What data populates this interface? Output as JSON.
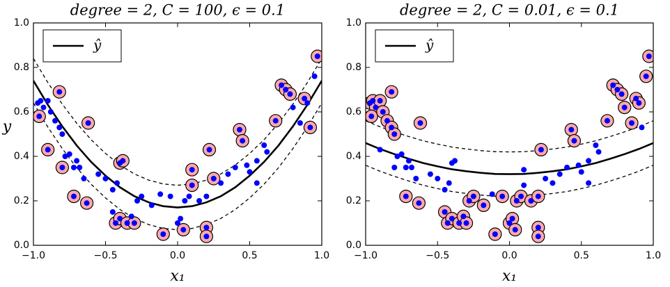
{
  "chart_data": [
    {
      "type": "scatter",
      "title": "degree = 2, C = 100, ϵ = 0.1",
      "x_label": "x₁",
      "y_label": "y",
      "xlim": [
        -1,
        1
      ],
      "ylim": [
        0,
        1
      ],
      "xticks": [
        {
          "value": -1,
          "label": "−1.0"
        },
        {
          "value": -0.5,
          "label": "−0.5"
        },
        {
          "value": 0,
          "label": "0.0"
        },
        0.5,
        {
          "value": 1,
          "label": "1.0"
        }
      ],
      "yticks": [
        {
          "value": 0,
          "label": "0.0"
        },
        0.2,
        0.4,
        0.6,
        0.8,
        {
          "value": 1,
          "label": "1.0"
        }
      ],
      "legend": "upper left",
      "series": [
        {
          "name": "ŷ",
          "kind": "line",
          "color": "#000000",
          "x": [
            -1,
            -0.9,
            -0.8,
            -0.7,
            -0.6,
            -0.5,
            -0.4,
            -0.3,
            -0.2,
            -0.1,
            0,
            0.1,
            0.2,
            0.3,
            0.4,
            0.5,
            0.6,
            0.7,
            0.8,
            0.9,
            1
          ],
          "values": [
            0.74,
            0.632,
            0.535,
            0.449,
            0.375,
            0.313,
            0.261,
            0.221,
            0.193,
            0.176,
            0.17,
            0.176,
            0.193,
            0.221,
            0.261,
            0.313,
            0.375,
            0.449,
            0.535,
            0.632,
            0.74
          ]
        },
        {
          "kind": "line",
          "dash": true,
          "color": "#000000",
          "x": [
            -1,
            -0.9,
            -0.8,
            -0.7,
            -0.6,
            -0.5,
            -0.4,
            -0.3,
            -0.2,
            -0.1,
            0,
            0.1,
            0.2,
            0.3,
            0.4,
            0.5,
            0.6,
            0.7,
            0.8,
            0.9,
            1
          ],
          "values": [
            0.84,
            0.732,
            0.635,
            0.549,
            0.475,
            0.413,
            0.361,
            0.321,
            0.293,
            0.276,
            0.27,
            0.276,
            0.293,
            0.321,
            0.361,
            0.413,
            0.475,
            0.549,
            0.635,
            0.732,
            0.84
          ]
        },
        {
          "kind": "line",
          "dash": true,
          "color": "#000000",
          "x": [
            -1,
            -0.9,
            -0.8,
            -0.7,
            -0.6,
            -0.5,
            -0.4,
            -0.3,
            -0.2,
            -0.1,
            0,
            0.1,
            0.2,
            0.3,
            0.4,
            0.5,
            0.6,
            0.7,
            0.8,
            0.9,
            1
          ],
          "values": [
            0.64,
            0.532,
            0.435,
            0.349,
            0.275,
            0.213,
            0.161,
            0.121,
            0.093,
            0.076,
            0.07,
            0.076,
            0.093,
            0.121,
            0.161,
            0.213,
            0.275,
            0.349,
            0.435,
            0.532,
            0.64
          ]
        },
        {
          "kind": "scatter",
          "color": "#ffaaaa",
          "edgecolor": "#000000",
          "x": [
            -0.96,
            -0.9,
            -0.82,
            -0.8,
            -0.72,
            -0.62,
            -0.63,
            -0.4,
            -0.38,
            -0.43,
            -0.4,
            -0.35,
            -0.3,
            -0.1,
            0.04,
            0.1,
            0.1,
            0.2,
            0.2,
            0.22,
            0.25,
            0.43,
            0.45,
            0.68,
            0.72,
            0.75,
            0.78,
            0.88,
            0.92,
            0.97
          ],
          "values": [
            0.58,
            0.43,
            0.69,
            0.35,
            0.22,
            0.55,
            0.19,
            0.37,
            0.38,
            0.1,
            0.12,
            0.1,
            0.1,
            0.05,
            0.07,
            0.34,
            0.27,
            0.08,
            0.04,
            0.43,
            0.3,
            0.52,
            0.47,
            0.56,
            0.72,
            0.7,
            0.68,
            0.66,
            0.53,
            0.85
          ]
        },
        {
          "kind": "scatter",
          "color": "#0000ff",
          "x": [
            -0.97,
            -0.95,
            -0.93,
            -0.96,
            -0.9,
            -0.88,
            -0.85,
            -0.82,
            -0.9,
            -0.8,
            -0.82,
            -0.78,
            -0.75,
            -0.8,
            -0.72,
            -0.7,
            -0.68,
            -0.65,
            -0.72,
            -0.62,
            -0.63,
            -0.55,
            -0.5,
            -0.45,
            -0.42,
            -0.4,
            -0.38,
            -0.45,
            -0.43,
            -0.4,
            -0.35,
            -0.32,
            -0.3,
            -0.28,
            -0.25,
            -0.18,
            -0.12,
            -0.1,
            -0.05,
            0,
            0.02,
            0.04,
            0.05,
            0.08,
            0.1,
            0.1,
            0.15,
            0.2,
            0.2,
            0.2,
            0.22,
            0.25,
            0.3,
            0.35,
            0.4,
            0.43,
            0.45,
            0.48,
            0.5,
            0.55,
            0.55,
            0.6,
            0.62,
            0.68,
            0.72,
            0.75,
            0.78,
            0.8,
            0.85,
            0.88,
            0.9,
            0.92,
            0.95,
            0.97
          ],
          "values": [
            0.64,
            0.65,
            0.62,
            0.58,
            0.65,
            0.6,
            0.56,
            0.53,
            0.43,
            0.5,
            0.69,
            0.4,
            0.41,
            0.35,
            0.35,
            0.38,
            0.35,
            0.3,
            0.22,
            0.55,
            0.19,
            0.32,
            0.3,
            0.25,
            0.28,
            0.37,
            0.38,
            0.15,
            0.1,
            0.12,
            0.1,
            0.13,
            0.1,
            0.2,
            0.22,
            0.18,
            0.23,
            0.05,
            0.22,
            0.1,
            0.12,
            0.07,
            0.2,
            0.22,
            0.34,
            0.27,
            0.2,
            0.22,
            0.08,
            0.04,
            0.43,
            0.3,
            0.28,
            0.32,
            0.35,
            0.52,
            0.47,
            0.36,
            0.33,
            0.28,
            0.38,
            0.45,
            0.42,
            0.56,
            0.72,
            0.7,
            0.68,
            0.62,
            0.55,
            0.66,
            0.64,
            0.53,
            0.76,
            0.85
          ]
        }
      ]
    },
    {
      "type": "scatter",
      "title": "degree = 2, C = 0.01, ϵ = 0.1",
      "x_label": "x₁",
      "xlim": [
        -1,
        1
      ],
      "ylim": [
        0,
        1
      ],
      "xticks": [
        {
          "value": -1,
          "label": "−1.0"
        },
        {
          "value": -0.5,
          "label": "−0.5"
        },
        {
          "value": 0,
          "label": "0.0"
        },
        0.5,
        {
          "value": 1,
          "label": "1.0"
        }
      ],
      "yticks": [
        {
          "value": 0,
          "label": "0.0"
        },
        0.2,
        0.4,
        0.6,
        0.8,
        {
          "value": 1,
          "label": "1.0"
        }
      ],
      "legend": "upper left",
      "series": [
        {
          "name": "ŷ",
          "kind": "line",
          "color": "#000000",
          "x": [
            -1,
            -0.9,
            -0.8,
            -0.7,
            -0.6,
            -0.5,
            -0.4,
            -0.3,
            -0.2,
            -0.1,
            0,
            0.1,
            0.2,
            0.3,
            0.4,
            0.5,
            0.6,
            0.7,
            0.8,
            0.9,
            1
          ],
          "values": [
            0.46,
            0.433,
            0.41,
            0.389,
            0.37,
            0.355,
            0.342,
            0.333,
            0.326,
            0.321,
            0.32,
            0.321,
            0.326,
            0.333,
            0.342,
            0.355,
            0.37,
            0.389,
            0.41,
            0.433,
            0.46
          ]
        },
        {
          "kind": "line",
          "dash": true,
          "color": "#000000",
          "x": [
            -1,
            -0.9,
            -0.8,
            -0.7,
            -0.6,
            -0.5,
            -0.4,
            -0.3,
            -0.2,
            -0.1,
            0,
            0.1,
            0.2,
            0.3,
            0.4,
            0.5,
            0.6,
            0.7,
            0.8,
            0.9,
            1
          ],
          "values": [
            0.56,
            0.533,
            0.51,
            0.489,
            0.47,
            0.455,
            0.442,
            0.433,
            0.426,
            0.421,
            0.42,
            0.421,
            0.426,
            0.433,
            0.442,
            0.455,
            0.47,
            0.489,
            0.51,
            0.533,
            0.56
          ]
        },
        {
          "kind": "line",
          "dash": true,
          "color": "#000000",
          "x": [
            -1,
            -0.9,
            -0.8,
            -0.7,
            -0.6,
            -0.5,
            -0.4,
            -0.3,
            -0.2,
            -0.1,
            0,
            0.1,
            0.2,
            0.3,
            0.4,
            0.5,
            0.6,
            0.7,
            0.8,
            0.9,
            1
          ],
          "values": [
            0.36,
            0.333,
            0.31,
            0.289,
            0.27,
            0.255,
            0.242,
            0.233,
            0.226,
            0.221,
            0.22,
            0.221,
            0.226,
            0.233,
            0.242,
            0.255,
            0.27,
            0.289,
            0.31,
            0.333,
            0.36
          ]
        },
        {
          "kind": "scatter",
          "color": "#ffaaaa",
          "edgecolor": "#000000",
          "x": [
            -0.97,
            -0.95,
            -0.93,
            -0.96,
            -0.9,
            -0.88,
            -0.85,
            -0.82,
            -0.8,
            -0.82,
            -0.72,
            -0.62,
            -0.63,
            -0.45,
            -0.43,
            -0.4,
            -0.35,
            -0.32,
            -0.3,
            -0.28,
            -0.25,
            -0.18,
            -0.1,
            -0.05,
            0,
            0.02,
            0.04,
            0.05,
            0.08,
            0.15,
            0.2,
            0.2,
            0.2,
            0.22,
            0.43,
            0.45,
            0.68,
            0.72,
            0.75,
            0.78,
            0.8,
            0.85,
            0.88,
            0.9,
            0.95,
            0.97
          ],
          "values": [
            0.64,
            0.65,
            0.62,
            0.58,
            0.65,
            0.6,
            0.56,
            0.53,
            0.5,
            0.69,
            0.22,
            0.55,
            0.19,
            0.15,
            0.1,
            0.12,
            0.1,
            0.13,
            0.1,
            0.2,
            0.22,
            0.18,
            0.05,
            0.22,
            0.1,
            0.12,
            0.07,
            0.2,
            0.22,
            0.2,
            0.22,
            0.08,
            0.04,
            0.43,
            0.52,
            0.47,
            0.56,
            0.72,
            0.7,
            0.68,
            0.62,
            0.55,
            0.66,
            0.64,
            0.76,
            0.85
          ]
        },
        {
          "kind": "scatter",
          "color": "#0000ff",
          "x": [
            -0.97,
            -0.95,
            -0.93,
            -0.96,
            -0.9,
            -0.88,
            -0.85,
            -0.82,
            -0.9,
            -0.8,
            -0.82,
            -0.78,
            -0.75,
            -0.8,
            -0.72,
            -0.7,
            -0.68,
            -0.65,
            -0.72,
            -0.62,
            -0.63,
            -0.55,
            -0.5,
            -0.45,
            -0.42,
            -0.4,
            -0.38,
            -0.45,
            -0.43,
            -0.4,
            -0.35,
            -0.32,
            -0.3,
            -0.28,
            -0.25,
            -0.18,
            -0.12,
            -0.1,
            -0.05,
            0,
            0.02,
            0.04,
            0.05,
            0.08,
            0.1,
            0.1,
            0.15,
            0.2,
            0.2,
            0.2,
            0.22,
            0.25,
            0.3,
            0.35,
            0.4,
            0.43,
            0.45,
            0.48,
            0.5,
            0.55,
            0.55,
            0.6,
            0.62,
            0.68,
            0.72,
            0.75,
            0.78,
            0.8,
            0.85,
            0.88,
            0.9,
            0.92,
            0.95,
            0.97
          ],
          "values": [
            0.64,
            0.65,
            0.62,
            0.58,
            0.65,
            0.6,
            0.56,
            0.53,
            0.43,
            0.5,
            0.69,
            0.4,
            0.41,
            0.35,
            0.35,
            0.38,
            0.35,
            0.3,
            0.22,
            0.55,
            0.19,
            0.32,
            0.3,
            0.25,
            0.28,
            0.37,
            0.38,
            0.15,
            0.1,
            0.12,
            0.1,
            0.13,
            0.1,
            0.2,
            0.22,
            0.18,
            0.23,
            0.05,
            0.22,
            0.1,
            0.12,
            0.07,
            0.2,
            0.22,
            0.34,
            0.27,
            0.2,
            0.22,
            0.08,
            0.04,
            0.43,
            0.3,
            0.28,
            0.32,
            0.35,
            0.52,
            0.47,
            0.36,
            0.33,
            0.28,
            0.38,
            0.45,
            0.42,
            0.56,
            0.72,
            0.7,
            0.68,
            0.62,
            0.55,
            0.66,
            0.64,
            0.53,
            0.76,
            0.85
          ]
        }
      ]
    }
  ]
}
